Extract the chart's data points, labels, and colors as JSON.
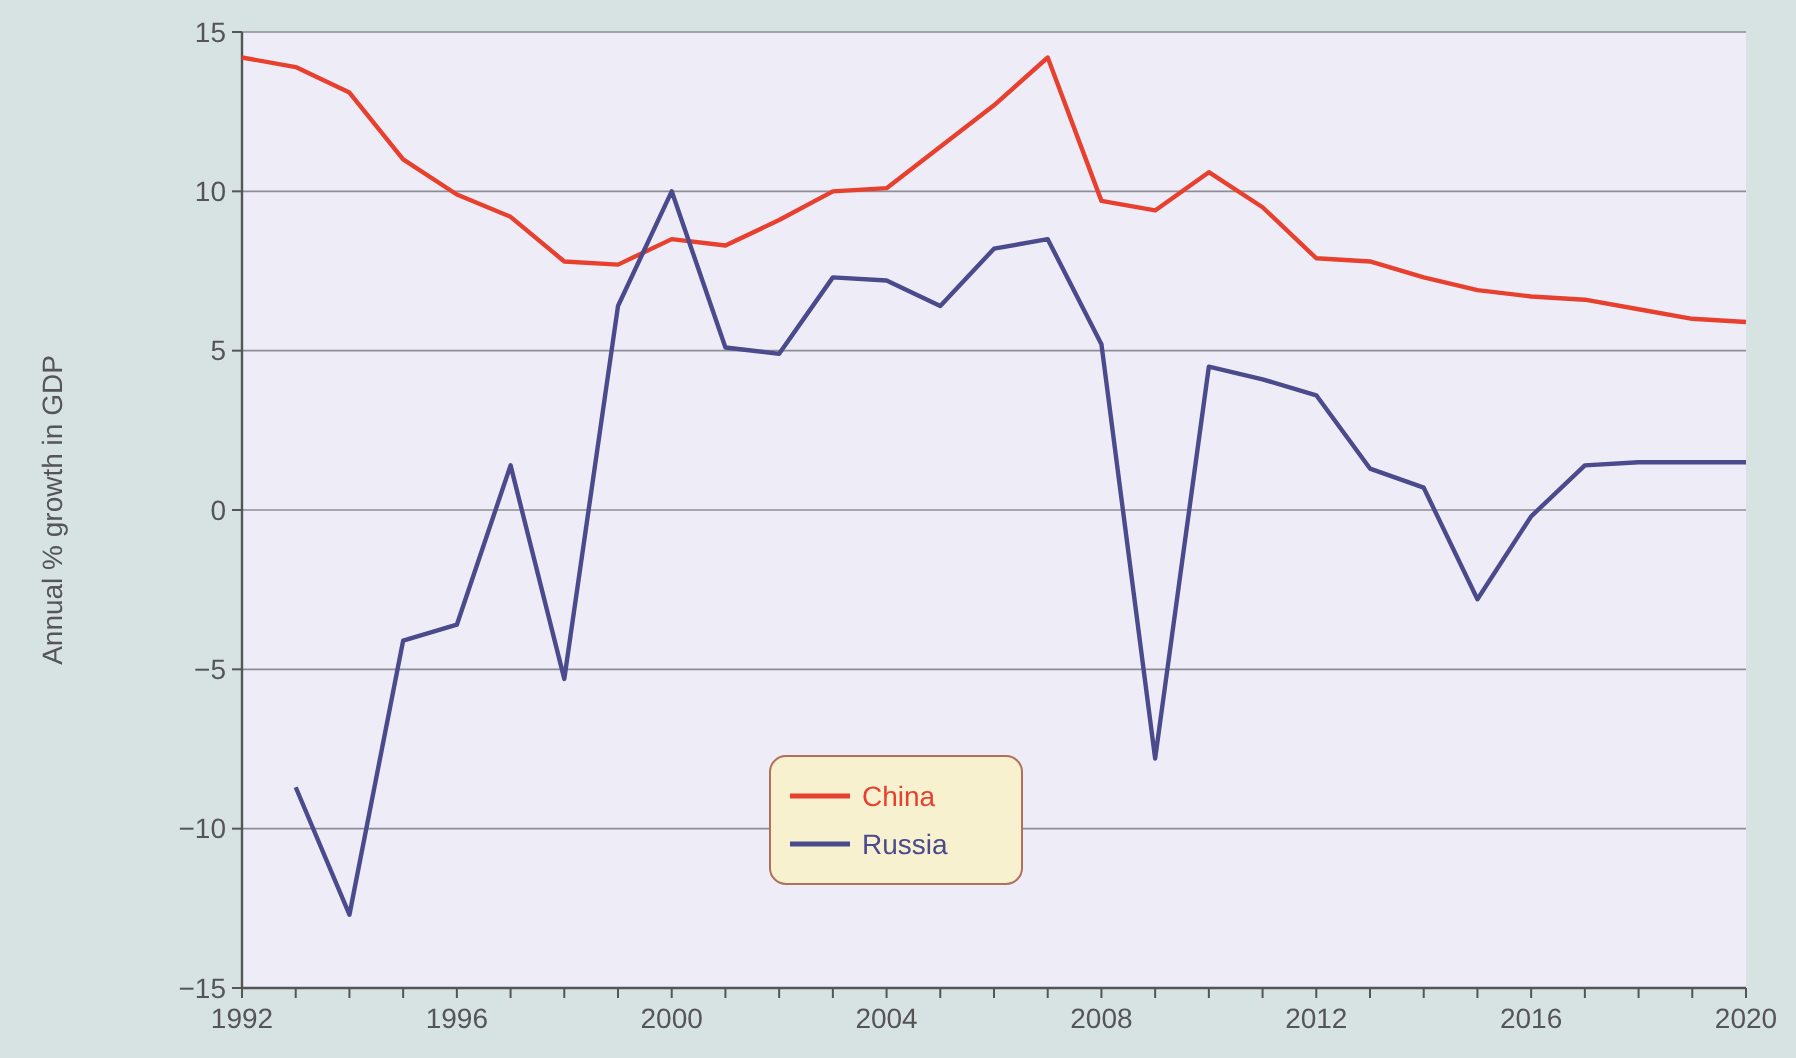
{
  "chart_data": {
    "type": "line",
    "ylabel": "Annual % growth in GDP",
    "x": [
      1992,
      1993,
      1994,
      1995,
      1996,
      1997,
      1998,
      1999,
      2000,
      2001,
      2002,
      2003,
      2004,
      2005,
      2006,
      2007,
      2008,
      2009,
      2010,
      2011,
      2012,
      2013,
      2014,
      2015,
      2016,
      2017,
      2018,
      2019,
      2020
    ],
    "series": [
      {
        "name": "China",
        "color": "#e8402f",
        "values": [
          14.2,
          13.9,
          13.1,
          11.0,
          9.9,
          9.2,
          7.8,
          7.7,
          8.5,
          8.3,
          9.1,
          10.0,
          10.1,
          11.4,
          12.7,
          14.2,
          9.7,
          9.4,
          10.6,
          9.5,
          7.9,
          7.8,
          7.3,
          6.9,
          6.7,
          6.6,
          6.3,
          6.0,
          5.9
        ]
      },
      {
        "name": "Russia",
        "color": "#4a4a8c",
        "values": [
          null,
          -8.7,
          -12.7,
          -4.1,
          -3.6,
          1.4,
          -5.3,
          6.4,
          10.0,
          5.1,
          4.9,
          7.3,
          7.2,
          6.4,
          8.2,
          8.5,
          5.2,
          -7.8,
          4.5,
          4.1,
          3.6,
          1.3,
          0.7,
          -2.8,
          -0.2,
          1.4,
          1.5,
          1.5,
          1.5
        ]
      }
    ],
    "xlim": [
      1992,
      2020
    ],
    "xticks": [
      1992,
      {
        "value": 1993,
        "label": null
      },
      {
        "value": 1994,
        "label": null
      },
      {
        "value": 1995,
        "label": null
      },
      1996,
      {
        "value": 1997,
        "label": null
      },
      {
        "value": 1998,
        "label": null
      },
      {
        "value": 1999,
        "label": null
      },
      2000,
      {
        "value": 2001,
        "label": null
      },
      {
        "value": 2002,
        "label": null
      },
      {
        "value": 2003,
        "label": null
      },
      2004,
      {
        "value": 2005,
        "label": null
      },
      {
        "value": 2006,
        "label": null
      },
      {
        "value": 2007,
        "label": null
      },
      2008,
      {
        "value": 2009,
        "label": null
      },
      {
        "value": 2010,
        "label": null
      },
      {
        "value": 2011,
        "label": null
      },
      2012,
      {
        "value": 2013,
        "label": null
      },
      {
        "value": 2014,
        "label": null
      },
      {
        "value": 2015,
        "label": null
      },
      2016,
      {
        "value": 2017,
        "label": null
      },
      {
        "value": 2018,
        "label": null
      },
      {
        "value": 2019,
        "label": null
      },
      2020
    ],
    "ylim": [
      -15,
      15
    ],
    "yticks": [
      {
        "value": -15,
        "label": "−15"
      },
      {
        "value": -10,
        "label": "−10"
      },
      {
        "value": -5,
        "label": "−5"
      },
      0,
      5,
      10,
      15
    ],
    "grid": "y",
    "legend": "bottom",
    "marker": "none",
    "line_style": "solid"
  }
}
